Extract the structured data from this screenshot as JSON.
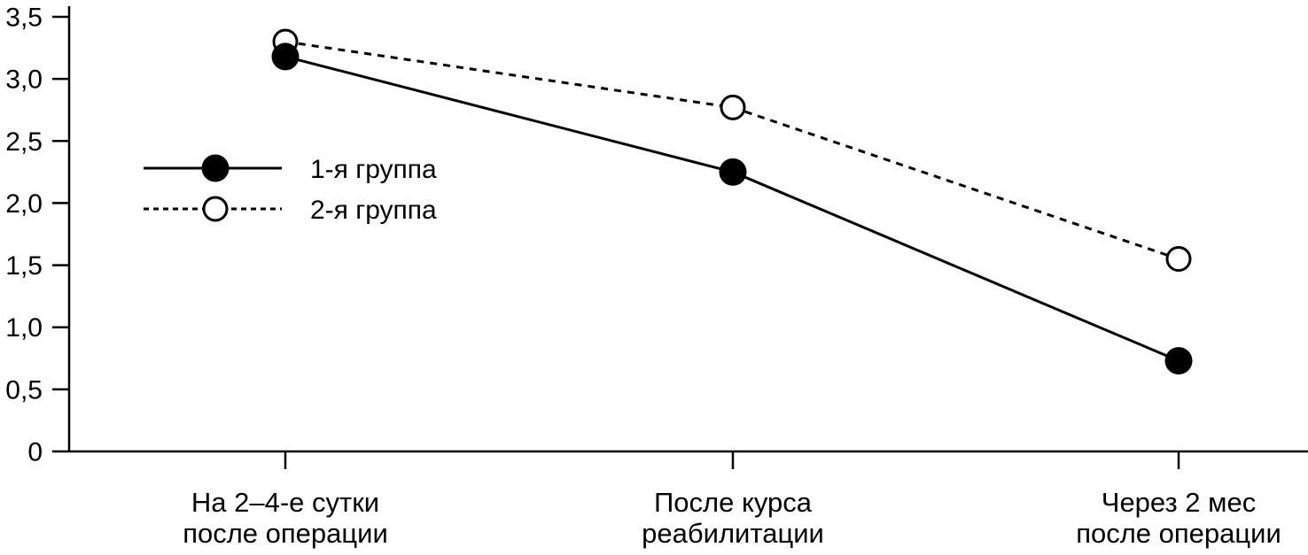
{
  "chart_data": {
    "type": "line",
    "title": "",
    "xlabel": "",
    "ylabel": "",
    "categories": [
      [
        "На 2–4-е сутки",
        "после операции"
      ],
      [
        "После курса",
        "реабилитации"
      ],
      [
        "Через 2 мес",
        "после операции"
      ]
    ],
    "series": [
      {
        "name": "1-я группа",
        "values": [
          3.18,
          2.25,
          0.73
        ],
        "marker": "filled-circle",
        "line_style": "solid",
        "color": "#000000"
      },
      {
        "name": "2-я группа",
        "values": [
          3.3,
          2.77,
          1.55
        ],
        "marker": "open-circle",
        "line_style": "dashed",
        "color": "#000000"
      }
    ],
    "ylim": [
      0,
      3.5
    ],
    "ytick_step": 0.5,
    "ytick_labels": [
      "0",
      "0,5",
      "1,0",
      "1,5",
      "2,0",
      "2,5",
      "3,0",
      "3,5"
    ],
    "grid": false,
    "legend_position": "inside-upper-left",
    "background_color": "#ffffff",
    "axis_color": "#000000"
  }
}
